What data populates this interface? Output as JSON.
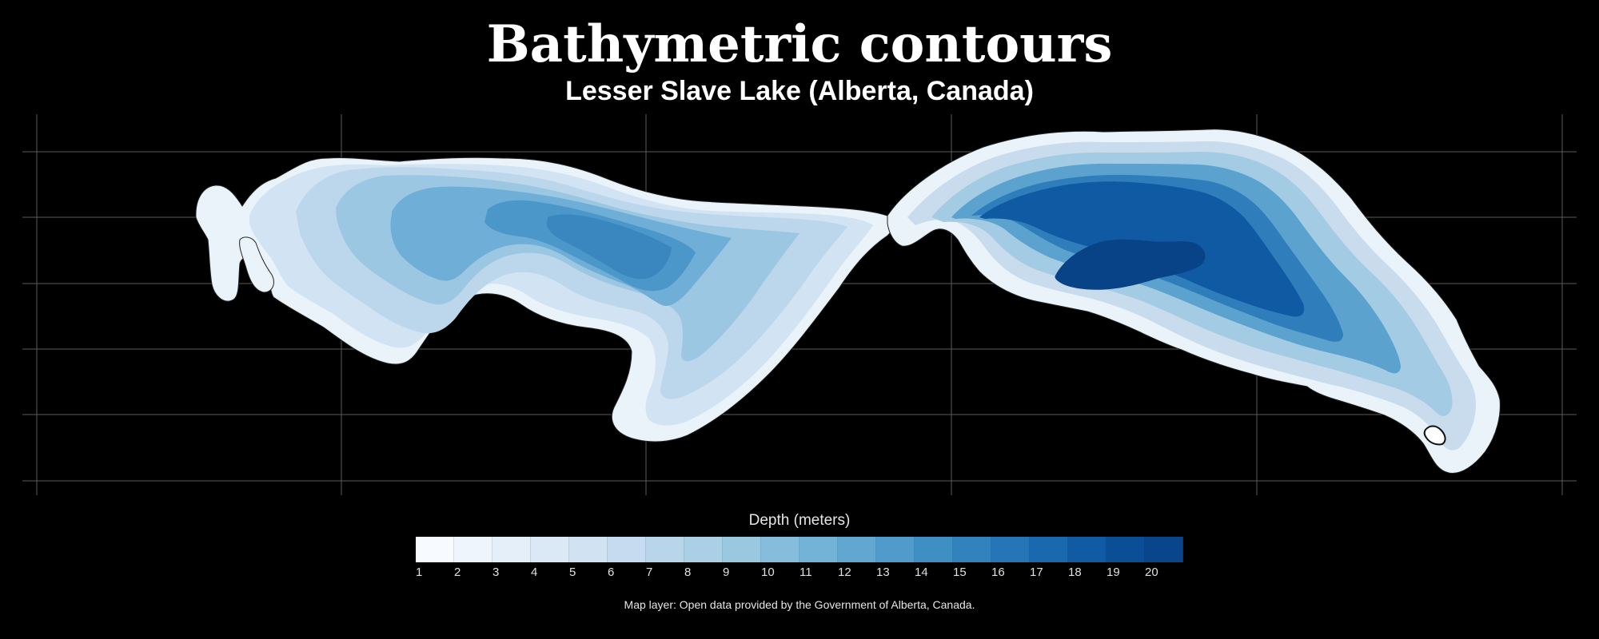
{
  "header": {
    "title": "Bathymetric contours",
    "subtitle": "Lesser Slave Lake (Alberta, Canada)"
  },
  "map": {
    "layer": "lake-bathymetry",
    "background_color": "#000000",
    "grid_color": "#555555",
    "shoreline_color": "#1a1a1a"
  },
  "legend": {
    "title": "Depth (meters)",
    "depth_labels": [
      "1",
      "2",
      "3",
      "4",
      "5",
      "6",
      "7",
      "8",
      "9",
      "10",
      "11",
      "12",
      "13",
      "14",
      "15",
      "16",
      "17",
      "18",
      "19",
      "20"
    ],
    "colors": [
      "#f7fbff",
      "#eef5fc",
      "#e4eff9",
      "#dbe9f6",
      "#d1e2f2",
      "#c6dbef",
      "#b9d5ea",
      "#abcfe5",
      "#9ac8e0",
      "#87bddc",
      "#74b3d8",
      "#61a7d2",
      "#509bcb",
      "#3f8fc5",
      "#3282be",
      "#2575b7",
      "#1a68ad",
      "#105ba4",
      "#0a4f96",
      "#08458a"
    ]
  },
  "source_note": "Map layer: Open data provided by the Government of Alberta, Canada."
}
